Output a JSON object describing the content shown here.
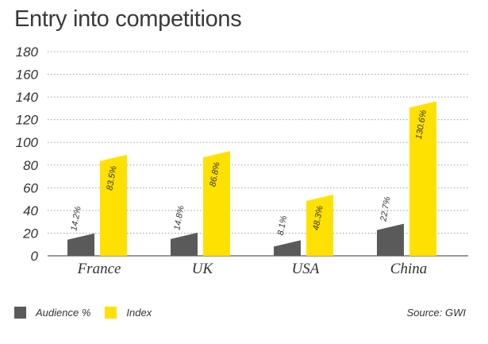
{
  "title": "Entry into competitions",
  "source": "Source: GWI",
  "colors": {
    "audience": "#5a5a5a",
    "index": "#ffe100",
    "grid": "#a0a0a0",
    "axis": "#333333"
  },
  "chart_data": {
    "type": "bar",
    "title": "Entry into competitions",
    "categories": [
      "France",
      "UK",
      "USA",
      "China"
    ],
    "series": [
      {
        "name": "Audience %",
        "values": [
          14.2,
          14.8,
          8.1,
          22.7
        ],
        "labels": [
          "14.2%",
          "14.8%",
          "8.1%",
          "22.7%"
        ]
      },
      {
        "name": "Index",
        "values": [
          83.5,
          86.8,
          48.3,
          130.6
        ],
        "labels": [
          "83.5%",
          "86.8%",
          "48.3%",
          "130.6%"
        ]
      }
    ],
    "yticks": [
      "0",
      "20",
      "40",
      "60",
      "80",
      "100",
      "120",
      "140",
      "160",
      "180"
    ],
    "ylim": [
      0,
      180
    ],
    "grid": true,
    "legend": "bottom-left"
  }
}
